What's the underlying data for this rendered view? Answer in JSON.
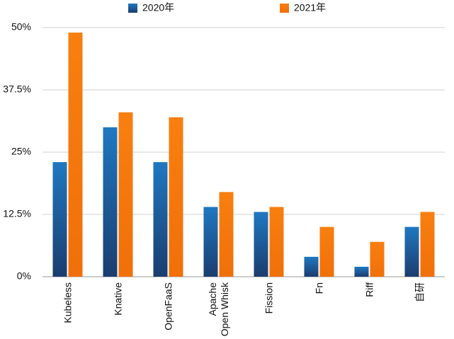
{
  "chart_data": {
    "type": "bar",
    "categories": [
      "Kubeless",
      "Knative",
      "OpenFaaS",
      "Apache\nOpen Whisk",
      "Fission",
      "Fn",
      "Riff",
      "自研"
    ],
    "series": [
      {
        "name": "2020年",
        "color": "#1f6fb5",
        "values": [
          23,
          30,
          23,
          14,
          13,
          4,
          2,
          10
        ]
      },
      {
        "name": "2021年",
        "color": "#f5780f",
        "values": [
          49,
          33,
          32,
          17,
          14,
          10,
          7,
          13
        ]
      }
    ],
    "ylim": [
      0,
      50
    ],
    "yticks": [
      {
        "value": 0,
        "label": "0%"
      },
      {
        "value": 12.5,
        "label": "12.5%"
      },
      {
        "value": 25,
        "label": "25%"
      },
      {
        "value": 37.5,
        "label": "37.5%"
      },
      {
        "value": 50,
        "label": "50%"
      }
    ],
    "grid": true,
    "legend": "top"
  }
}
